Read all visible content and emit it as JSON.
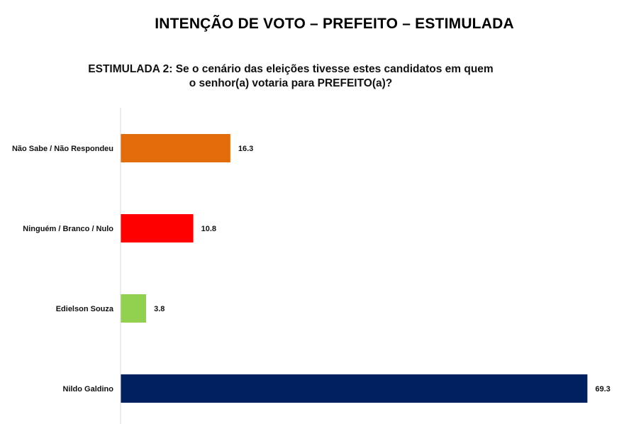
{
  "title": "INTENÇÃO DE VOTO – PREFEITO – ESTIMULADA",
  "question": "ESTIMULADA 2: Se o cenário das eleições tivesse estes candidatos em quem o senhor(a) votaria para PREFEITO(a)?",
  "chart_data": {
    "type": "bar",
    "orientation": "horizontal",
    "categories": [
      "Não Sabe / Não Respondeu",
      "Ninguém / Branco / Nulo",
      "Edielson Souza",
      "Nildo Galdino"
    ],
    "values": [
      16.3,
      10.8,
      3.8,
      69.3
    ],
    "value_labels": [
      "16.3",
      "10.8",
      "3.8",
      "69.3"
    ],
    "colors": [
      "#E36C0A",
      "#FF0000",
      "#92D050",
      "#002060"
    ],
    "xlim": [
      0,
      70
    ],
    "grid": false,
    "legend": "none"
  }
}
